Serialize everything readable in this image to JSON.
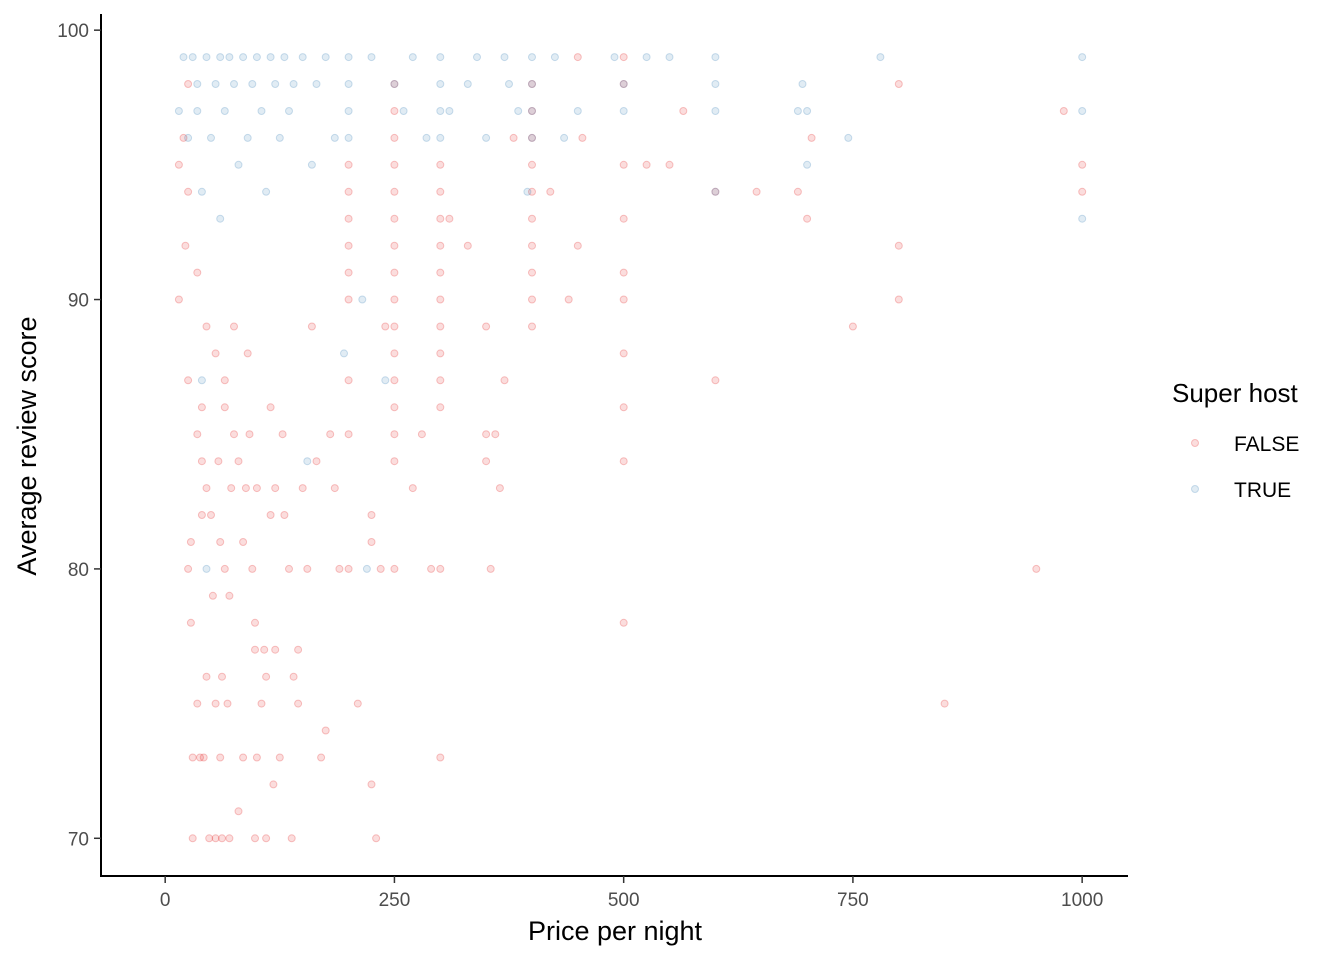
{
  "chart_data": {
    "type": "scatter",
    "title": "",
    "xlabel": "Price per night",
    "ylabel": "Average review score",
    "xlim": [
      -70,
      1050
    ],
    "ylim": [
      68.6,
      100.6
    ],
    "xticks": [
      0,
      250,
      500,
      750,
      1000
    ],
    "yticks": [
      70,
      80,
      90,
      100
    ],
    "grid": false,
    "point_alpha": 0.15,
    "legend": {
      "title": "Super host",
      "position": "right",
      "entries": [
        "FALSE",
        "TRUE"
      ]
    },
    "series": [
      {
        "name": "FALSE",
        "color": "#e41a1c",
        "points": [
          [
            15,
            95
          ],
          [
            15,
            90
          ],
          [
            20,
            96
          ],
          [
            22,
            92
          ],
          [
            25,
            98
          ],
          [
            25,
            94
          ],
          [
            25,
            87
          ],
          [
            25,
            80
          ],
          [
            28,
            81
          ],
          [
            28,
            78
          ],
          [
            30,
            73
          ],
          [
            30,
            70
          ],
          [
            35,
            91
          ],
          [
            35,
            85
          ],
          [
            35,
            75
          ],
          [
            38,
            73
          ],
          [
            40,
            86
          ],
          [
            40,
            84
          ],
          [
            40,
            82
          ],
          [
            42,
            73
          ],
          [
            45,
            89
          ],
          [
            45,
            83
          ],
          [
            45,
            76
          ],
          [
            48,
            70
          ],
          [
            50,
            82
          ],
          [
            52,
            79
          ],
          [
            55,
            88
          ],
          [
            55,
            75
          ],
          [
            55,
            70
          ],
          [
            58,
            84
          ],
          [
            60,
            81
          ],
          [
            60,
            73
          ],
          [
            62,
            76
          ],
          [
            62,
            70
          ],
          [
            65,
            87
          ],
          [
            65,
            86
          ],
          [
            65,
            80
          ],
          [
            68,
            75
          ],
          [
            70,
            79
          ],
          [
            70,
            70
          ],
          [
            72,
            83
          ],
          [
            75,
            89
          ],
          [
            75,
            85
          ],
          [
            80,
            84
          ],
          [
            80,
            71
          ],
          [
            85,
            81
          ],
          [
            85,
            73
          ],
          [
            88,
            83
          ],
          [
            90,
            88
          ],
          [
            92,
            85
          ],
          [
            95,
            80
          ],
          [
            98,
            78
          ],
          [
            98,
            77
          ],
          [
            98,
            70
          ],
          [
            100,
            73
          ],
          [
            100,
            83
          ],
          [
            105,
            75
          ],
          [
            108,
            77
          ],
          [
            110,
            76
          ],
          [
            110,
            70
          ],
          [
            115,
            82
          ],
          [
            115,
            86
          ],
          [
            118,
            72
          ],
          [
            120,
            77
          ],
          [
            120,
            83
          ],
          [
            125,
            73
          ],
          [
            128,
            85
          ],
          [
            130,
            82
          ],
          [
            135,
            80
          ],
          [
            138,
            70
          ],
          [
            140,
            76
          ],
          [
            145,
            77
          ],
          [
            145,
            75
          ],
          [
            150,
            83
          ],
          [
            155,
            80
          ],
          [
            160,
            89
          ],
          [
            165,
            84
          ],
          [
            170,
            73
          ],
          [
            175,
            74
          ],
          [
            180,
            85
          ],
          [
            185,
            83
          ],
          [
            190,
            80
          ],
          [
            200,
            95
          ],
          [
            200,
            94
          ],
          [
            200,
            93
          ],
          [
            200,
            92
          ],
          [
            200,
            91
          ],
          [
            200,
            90
          ],
          [
            200,
            87
          ],
          [
            200,
            85
          ],
          [
            200,
            80
          ],
          [
            210,
            75
          ],
          [
            225,
            82
          ],
          [
            225,
            81
          ],
          [
            225,
            72
          ],
          [
            230,
            70
          ],
          [
            235,
            80
          ],
          [
            240,
            89
          ],
          [
            250,
            98
          ],
          [
            250,
            97
          ],
          [
            250,
            96
          ],
          [
            250,
            95
          ],
          [
            250,
            94
          ],
          [
            250,
            93
          ],
          [
            250,
            92
          ],
          [
            250,
            91
          ],
          [
            250,
            90
          ],
          [
            250,
            89
          ],
          [
            250,
            88
          ],
          [
            250,
            87
          ],
          [
            250,
            86
          ],
          [
            250,
            85
          ],
          [
            250,
            84
          ],
          [
            250,
            80
          ],
          [
            270,
            83
          ],
          [
            280,
            85
          ],
          [
            290,
            80
          ],
          [
            300,
            95
          ],
          [
            300,
            94
          ],
          [
            300,
            93
          ],
          [
            300,
            92
          ],
          [
            300,
            91
          ],
          [
            300,
            90
          ],
          [
            300,
            89
          ],
          [
            300,
            88
          ],
          [
            300,
            87
          ],
          [
            300,
            86
          ],
          [
            300,
            80
          ],
          [
            300,
            73
          ],
          [
            310,
            93
          ],
          [
            330,
            92
          ],
          [
            350,
            89
          ],
          [
            350,
            85
          ],
          [
            350,
            84
          ],
          [
            355,
            80
          ],
          [
            360,
            85
          ],
          [
            365,
            83
          ],
          [
            370,
            87
          ],
          [
            380,
            96
          ],
          [
            400,
            98
          ],
          [
            400,
            97
          ],
          [
            400,
            96
          ],
          [
            400,
            95
          ],
          [
            400,
            94
          ],
          [
            400,
            93
          ],
          [
            400,
            92
          ],
          [
            400,
            91
          ],
          [
            400,
            90
          ],
          [
            400,
            89
          ],
          [
            420,
            94
          ],
          [
            440,
            90
          ],
          [
            450,
            99
          ],
          [
            450,
            92
          ],
          [
            455,
            96
          ],
          [
            500,
            99
          ],
          [
            500,
            98
          ],
          [
            500,
            95
          ],
          [
            500,
            93
          ],
          [
            500,
            91
          ],
          [
            500,
            90
          ],
          [
            500,
            88
          ],
          [
            500,
            86
          ],
          [
            500,
            84
          ],
          [
            500,
            78
          ],
          [
            525,
            95
          ],
          [
            550,
            95
          ],
          [
            565,
            97
          ],
          [
            600,
            94
          ],
          [
            600,
            87
          ],
          [
            645,
            94
          ],
          [
            690,
            94
          ],
          [
            700,
            93
          ],
          [
            705,
            96
          ],
          [
            750,
            89
          ],
          [
            800,
            98
          ],
          [
            800,
            92
          ],
          [
            800,
            90
          ],
          [
            850,
            75
          ],
          [
            950,
            80
          ],
          [
            980,
            97
          ],
          [
            1000,
            95
          ],
          [
            1000,
            94
          ]
        ]
      },
      {
        "name": "TRUE",
        "color": "#377eb8",
        "points": [
          [
            15,
            97
          ],
          [
            20,
            99
          ],
          [
            25,
            96
          ],
          [
            30,
            99
          ],
          [
            35,
            98
          ],
          [
            35,
            97
          ],
          [
            40,
            94
          ],
          [
            40,
            87
          ],
          [
            45,
            99
          ],
          [
            45,
            80
          ],
          [
            50,
            96
          ],
          [
            55,
            98
          ],
          [
            60,
            99
          ],
          [
            60,
            93
          ],
          [
            65,
            97
          ],
          [
            70,
            99
          ],
          [
            75,
            98
          ],
          [
            80,
            95
          ],
          [
            85,
            99
          ],
          [
            90,
            96
          ],
          [
            95,
            98
          ],
          [
            100,
            99
          ],
          [
            105,
            97
          ],
          [
            110,
            94
          ],
          [
            115,
            99
          ],
          [
            120,
            98
          ],
          [
            125,
            96
          ],
          [
            130,
            99
          ],
          [
            135,
            97
          ],
          [
            140,
            98
          ],
          [
            150,
            99
          ],
          [
            155,
            84
          ],
          [
            160,
            95
          ],
          [
            165,
            98
          ],
          [
            175,
            99
          ],
          [
            185,
            96
          ],
          [
            195,
            88
          ],
          [
            200,
            99
          ],
          [
            200,
            98
          ],
          [
            200,
            97
          ],
          [
            200,
            96
          ],
          [
            215,
            90
          ],
          [
            220,
            80
          ],
          [
            225,
            99
          ],
          [
            240,
            87
          ],
          [
            250,
            98
          ],
          [
            260,
            97
          ],
          [
            270,
            99
          ],
          [
            285,
            96
          ],
          [
            300,
            99
          ],
          [
            300,
            98
          ],
          [
            300,
            97
          ],
          [
            300,
            96
          ],
          [
            310,
            97
          ],
          [
            330,
            98
          ],
          [
            340,
            99
          ],
          [
            350,
            96
          ],
          [
            370,
            99
          ],
          [
            375,
            98
          ],
          [
            385,
            97
          ],
          [
            395,
            94
          ],
          [
            400,
            99
          ],
          [
            400,
            98
          ],
          [
            400,
            97
          ],
          [
            400,
            96
          ],
          [
            425,
            99
          ],
          [
            435,
            96
          ],
          [
            450,
            97
          ],
          [
            490,
            99
          ],
          [
            500,
            98
          ],
          [
            500,
            97
          ],
          [
            525,
            99
          ],
          [
            550,
            99
          ],
          [
            600,
            99
          ],
          [
            600,
            98
          ],
          [
            600,
            97
          ],
          [
            600,
            94
          ],
          [
            690,
            97
          ],
          [
            695,
            98
          ],
          [
            700,
            97
          ],
          [
            700,
            95
          ],
          [
            745,
            96
          ],
          [
            780,
            99
          ],
          [
            1000,
            99
          ],
          [
            1000,
            97
          ],
          [
            1000,
            93
          ]
        ]
      }
    ]
  }
}
